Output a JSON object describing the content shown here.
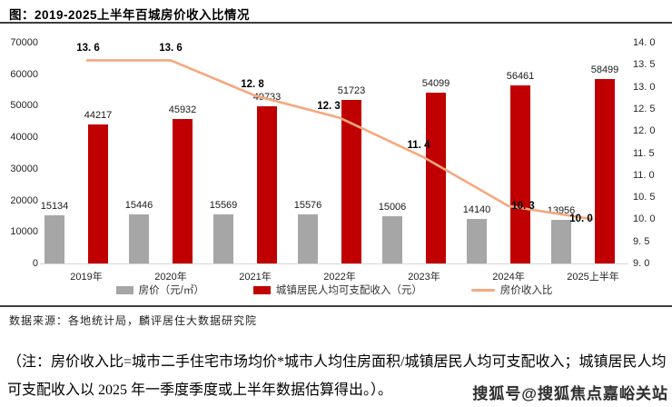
{
  "header": {
    "title": "图：2019-2025上半年百城房价收入比情况"
  },
  "chart_data": {
    "type": "bar",
    "combo": "bar+line",
    "title": "图：2019-2025上半年百城房价收入比情况",
    "categories": [
      "2019年",
      "2020年",
      "2021年",
      "2022年",
      "2023年",
      "2024年",
      "2025上半年"
    ],
    "series": [
      {
        "name": "房价（元/㎡）",
        "chart": "bar",
        "axis": "left",
        "color": "#A6A6A6",
        "values": [
          15134,
          15446,
          15569,
          15576,
          15006,
          14140,
          13956
        ]
      },
      {
        "name": "城镇居民人均可支配收入（元）",
        "chart": "bar",
        "axis": "left",
        "color": "#C00000",
        "values": [
          44217,
          45932,
          49733,
          51723,
          54099,
          56461,
          58499
        ]
      },
      {
        "name": "房价收入比",
        "chart": "line",
        "axis": "right",
        "color": "#F5A87E",
        "values": [
          13.6,
          13.6,
          12.8,
          12.3,
          11.4,
          10.3,
          10.0
        ],
        "point_labels": [
          "13. 6",
          "13. 6",
          "12. 8",
          "12. 3",
          "11. 4",
          "10. 3",
          "10. 0"
        ]
      }
    ],
    "left_axis": {
      "min": 0,
      "max": 70000,
      "step": 10000,
      "ticks": [
        "70000",
        "60000",
        "50000",
        "40000",
        "30000",
        "20000",
        "10000",
        "0"
      ]
    },
    "right_axis": {
      "min": 9.0,
      "max": 14.0,
      "step": 0.5,
      "ticks": [
        "14. 0",
        "13. 5",
        "13. 0",
        "12. 5",
        "12. 0",
        "11. 5",
        "11. 0",
        "10. 5",
        "10. 0",
        "9. 5",
        "9. 0"
      ]
    },
    "grid": false,
    "legend_position": "bottom"
  },
  "footer": {
    "source": "数据来源：各地统计局，麟评居住大数据研究院",
    "note": "（注：房价收入比=城市二手住宅市场均价*城市人均住房面积/城镇居民人均可支配收入；城镇居民人均可支配收入以 2025 年一季度季度或上半年数据估算得出。）。",
    "watermark": "搜狐号@搜狐焦点嘉峪关站"
  }
}
